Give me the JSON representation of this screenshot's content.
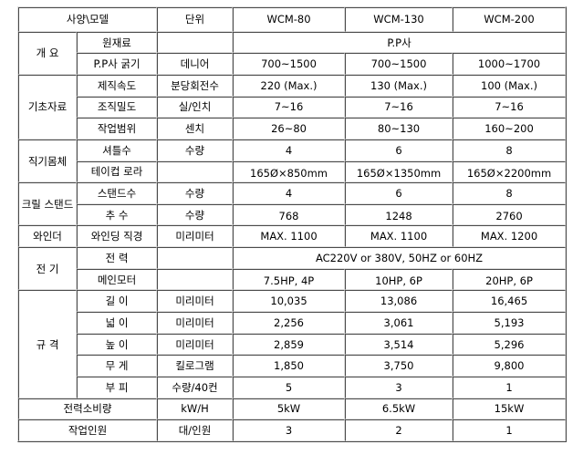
{
  "header": {
    "spec": "사양\\모델",
    "unit": "단위",
    "models": [
      "WCM-80",
      "WCM-130",
      "WCM-200"
    ]
  },
  "sections": {
    "overview": "개 요",
    "basic": "기초자료",
    "loom_body": "직기몸체",
    "creel_stand": "크릴 스탠드",
    "winder": "와인더",
    "electric": "전 기",
    "dimensions": "규 격"
  },
  "rows": {
    "material": {
      "label": "원재료",
      "unit": "",
      "value": "P.P사"
    },
    "thickness": {
      "label": "P.P사 굵기",
      "unit": "데니어",
      "values": [
        "700~1500",
        "700~1500",
        "1000~1700"
      ]
    },
    "speed": {
      "label": "제직속도",
      "unit": "분당회전수",
      "values": [
        "220 (Max.)",
        "130 (Max.)",
        "100 (Max.)"
      ]
    },
    "density": {
      "label": "조직밀도",
      "unit": "실/인치",
      "values": [
        "7~16",
        "7~16",
        "7~16"
      ]
    },
    "work_range": {
      "label": "작업범위",
      "unit": "센치",
      "values": [
        "26~80",
        "80~130",
        "160~200"
      ]
    },
    "shuttles": {
      "label": "셔틀수",
      "unit": "수량",
      "values": [
        "4",
        "6",
        "8"
      ]
    },
    "take_up": {
      "label": "테이컵 로라",
      "unit": "",
      "values": [
        "165Ø×850mm",
        "165Ø×1350mm",
        "165Ø×2200mm"
      ]
    },
    "stands": {
      "label": "스탠드수",
      "unit": "수량",
      "values": [
        "4",
        "6",
        "8"
      ]
    },
    "spindles": {
      "label": "추 수",
      "unit": "수량",
      "values": [
        "768",
        "1248",
        "2760"
      ]
    },
    "winding_dia": {
      "label": "와인딩 직경",
      "unit": "미리미터",
      "values": [
        "MAX. 1100",
        "MAX. 1100",
        "MAX. 1200"
      ]
    },
    "power": {
      "label": "전 력",
      "unit": "",
      "value": "AC220V or 380V, 50HZ or 60HZ"
    },
    "main_motor": {
      "label": "메인모터",
      "unit": "",
      "values": [
        "7.5HP, 4P",
        "10HP, 6P",
        "20HP, 6P"
      ]
    },
    "length": {
      "label": "길 이",
      "unit": "미리미터",
      "values": [
        "10,035",
        "13,086",
        "16,465"
      ]
    },
    "width": {
      "label": "넓 이",
      "unit": "미리미터",
      "values": [
        "2,256",
        "3,061",
        "5,193"
      ]
    },
    "height": {
      "label": "높 이",
      "unit": "미리미터",
      "values": [
        "2,859",
        "3,514",
        "5,296"
      ]
    },
    "weight": {
      "label": "무 게",
      "unit": "킬로그램",
      "values": [
        "1,850",
        "3,750",
        "9,800"
      ]
    },
    "volume": {
      "label": "부 피",
      "unit": "수량/40컨",
      "values": [
        "5",
        "3",
        "1"
      ]
    },
    "consumption": {
      "label": "전력소비량",
      "unit": "kW/H",
      "values": [
        "5kW",
        "6.5kW",
        "15kW"
      ]
    },
    "operators": {
      "label": "작업인원",
      "unit": "대/인원",
      "values": [
        "3",
        "2",
        "1"
      ]
    }
  }
}
